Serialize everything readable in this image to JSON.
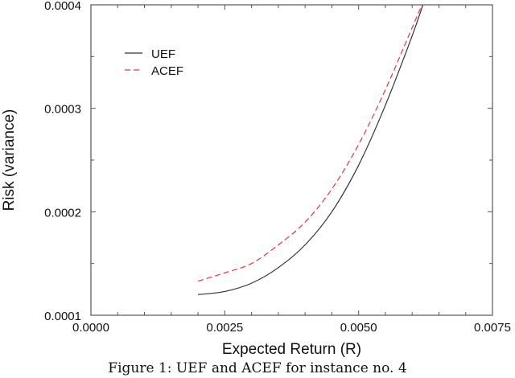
{
  "chart_data": {
    "type": "line",
    "title": "",
    "xlabel": "Expected Return (R)",
    "ylabel": "Risk (variance)",
    "xlim": [
      0.0,
      0.0075
    ],
    "ylim": [
      0.0001,
      0.0004
    ],
    "xticks": [
      "0.0000",
      "0.0025",
      "0.0050",
      "0.0075"
    ],
    "yticks": [
      "0.0001",
      "0.0002",
      "0.0003",
      "0.0004"
    ],
    "grid": false,
    "legend_position": "upper-left",
    "series": [
      {
        "name": "UEF",
        "style": "solid",
        "color": "#333333",
        "x": [
          0.002,
          0.0025,
          0.003,
          0.0035,
          0.004,
          0.0045,
          0.005,
          0.0055,
          0.006,
          0.0062
        ],
        "y": [
          0.00012,
          0.000123,
          0.000131,
          0.000146,
          0.000168,
          0.0002,
          0.000245,
          0.000303,
          0.00037,
          0.0004
        ]
      },
      {
        "name": "ACEF",
        "style": "dashed",
        "color": "#ee3333",
        "x": [
          0.002,
          0.0025,
          0.003,
          0.0035,
          0.004,
          0.0045,
          0.005,
          0.0055,
          0.006,
          0.0062
        ],
        "y": [
          0.000133,
          0.000141,
          0.00015,
          0.000168,
          0.00019,
          0.000222,
          0.000265,
          0.000318,
          0.000378,
          0.000402
        ]
      }
    ]
  },
  "caption": "Figure 1: UEF and ACEF for instance no. 4"
}
